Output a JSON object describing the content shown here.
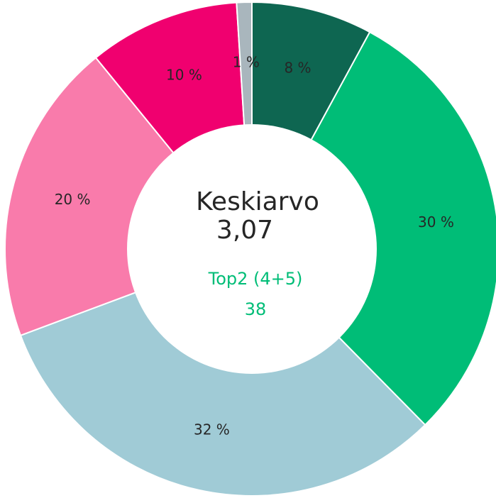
{
  "chart_data": {
    "type": "pie",
    "categories": [
      null,
      null,
      null,
      null,
      null,
      null
    ],
    "values": [
      8,
      30,
      32,
      20,
      10,
      1
    ],
    "value_labels": [
      "8 %",
      "30 %",
      "32 %",
      "20 %",
      "10 %",
      "1 %"
    ],
    "colors": [
      "#0e6651",
      "#00bd77",
      "#a0cbd6",
      "#f97bab",
      "#f0006f",
      "#a9b6bd"
    ],
    "annotations": [
      {
        "text": "Keskiarvo",
        "color": "#262626"
      },
      {
        "text": "3,07",
        "color": "#262626"
      },
      {
        "text": "Top2 (4+5)",
        "color": "#00bd77"
      },
      {
        "text": "38",
        "color": "#00bd77"
      }
    ]
  }
}
